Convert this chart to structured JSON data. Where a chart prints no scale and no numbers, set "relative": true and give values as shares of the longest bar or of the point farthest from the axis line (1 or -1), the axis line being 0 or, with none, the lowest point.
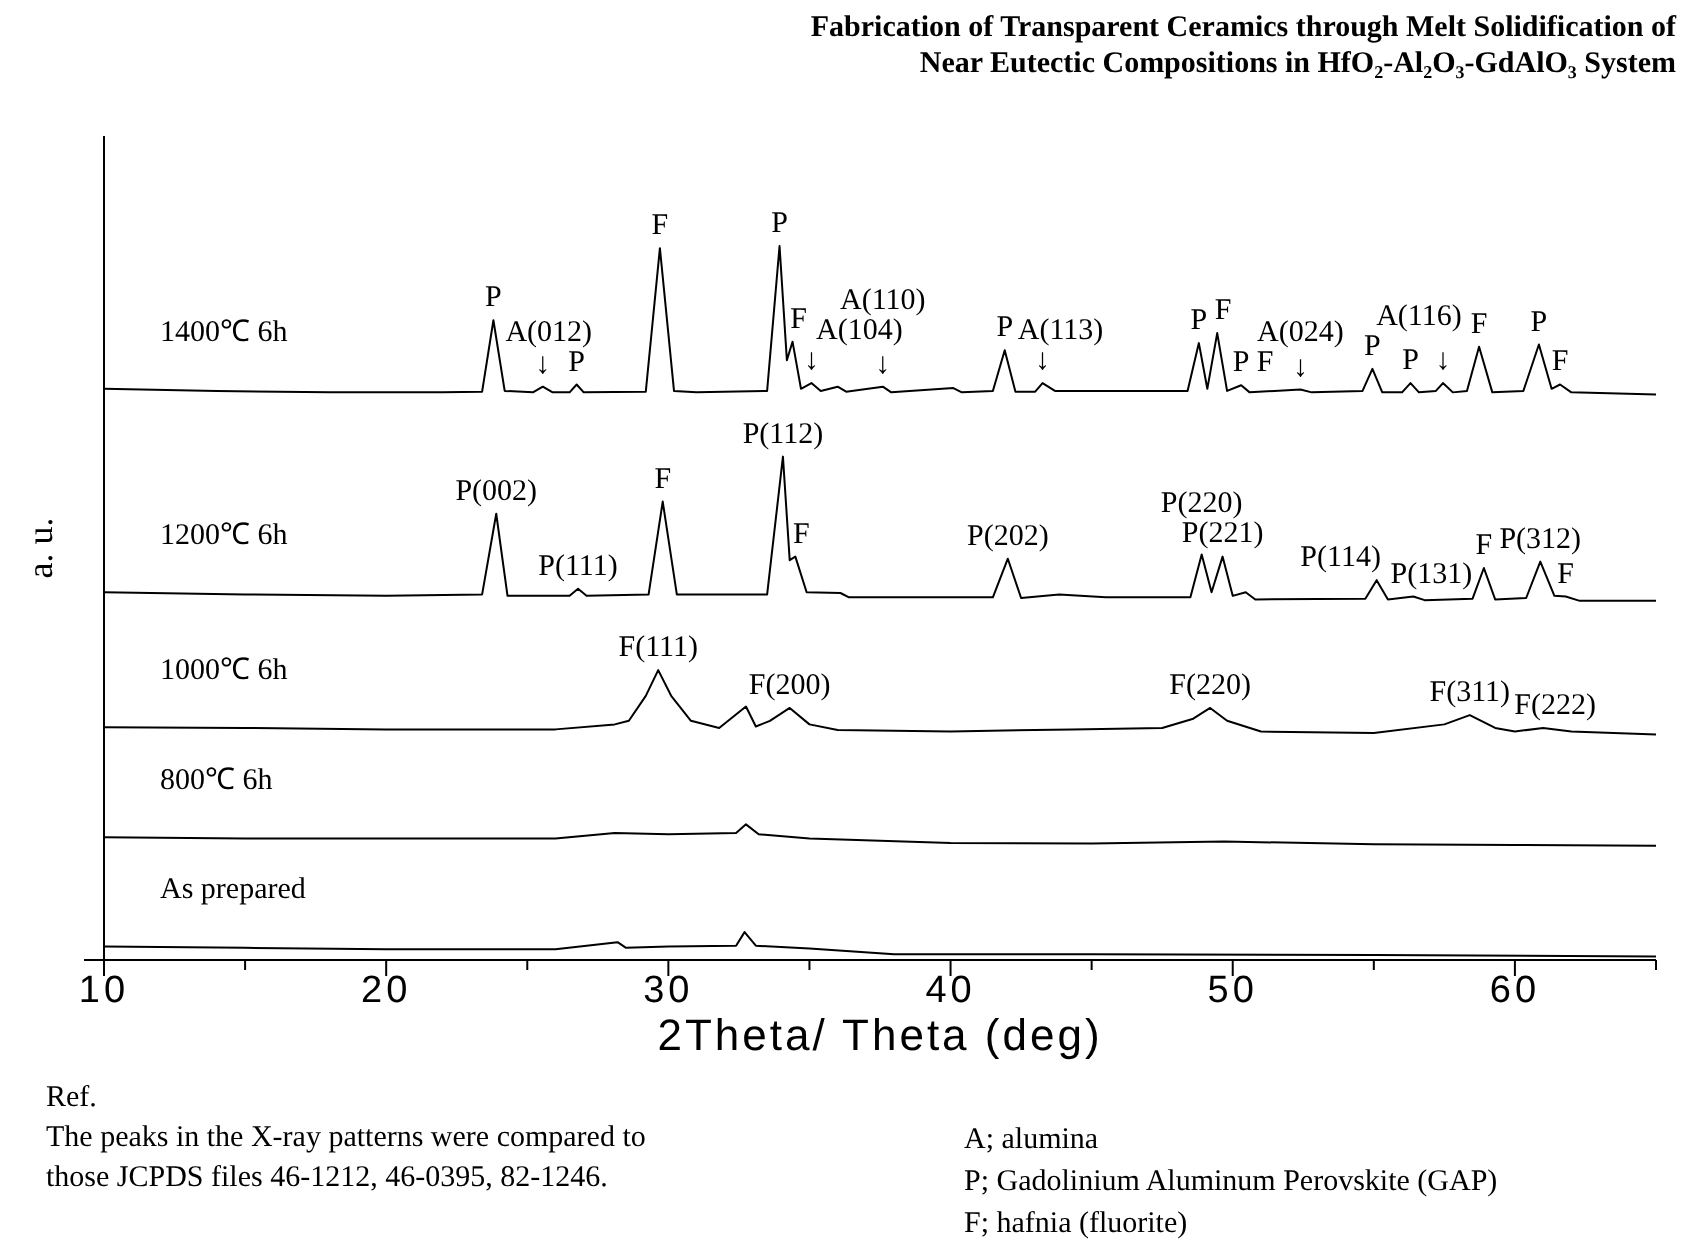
{
  "chart_data": {
    "type": "line",
    "title": "Fabrication of Transparent Ceramics through Melt Solidification of Near Eutectic Compositions in HfO₂-Al₂O₃-GdAlO₃ System",
    "xlabel": "2Theta/ Theta (deg)",
    "ylabel": "a. u.",
    "relative": true,
    "xlim": [
      10,
      65
    ],
    "xticks": [
      10,
      {
        "value": 15,
        "label": null
      },
      20,
      {
        "value": 25,
        "label": null
      },
      30,
      {
        "value": 35,
        "label": null
      },
      40,
      {
        "value": 45,
        "label": null
      },
      50,
      {
        "value": 55,
        "label": null
      },
      60,
      {
        "value": 65,
        "label": null
      }
    ],
    "series": [
      {
        "name": "1400℃ 6h",
        "color": "#000000",
        "x": [
          10,
          14,
          18,
          22,
          23.4,
          23.8,
          24.2,
          25.2,
          25.55,
          25.9,
          26.5,
          26.75,
          27,
          29.2,
          29.7,
          30.2,
          31,
          33.5,
          33.94,
          34.2,
          34.4,
          34.7,
          35.07,
          35.4,
          36.0,
          36.3,
          37.6,
          37.9,
          40.1,
          40.4,
          41.5,
          41.92,
          42.3,
          43.0,
          43.26,
          43.7,
          48.4,
          48.8,
          49.1,
          49.45,
          49.8,
          50.3,
          50.6,
          52.4,
          52.8,
          54.6,
          54.95,
          55.3,
          56.0,
          56.3,
          56.6,
          57.2,
          57.45,
          57.8,
          58.3,
          58.73,
          59.2,
          60.3,
          60.85,
          61.3,
          61.6,
          62.0,
          65
        ],
        "values": [
          0.8,
          0.797,
          0.795,
          0.795,
          0.796,
          0.896,
          0.797,
          0.795,
          0.803,
          0.795,
          0.795,
          0.806,
          0.795,
          0.796,
          0.997,
          0.797,
          0.795,
          0.797,
          1.0,
          0.84,
          0.866,
          0.8,
          0.808,
          0.797,
          0.803,
          0.796,
          0.803,
          0.795,
          0.801,
          0.795,
          0.797,
          0.854,
          0.796,
          0.796,
          0.808,
          0.797,
          0.797,
          0.864,
          0.8,
          0.878,
          0.797,
          0.805,
          0.795,
          0.799,
          0.795,
          0.797,
          0.828,
          0.795,
          0.795,
          0.808,
          0.795,
          0.797,
          0.808,
          0.795,
          0.797,
          0.859,
          0.795,
          0.797,
          0.862,
          0.8,
          0.806,
          0.795,
          0.792
        ]
      },
      {
        "name": "1200℃ 6h",
        "color": "#000000",
        "x": [
          10,
          15,
          20,
          23.4,
          23.9,
          24.3,
          26.5,
          26.8,
          27.1,
          29.3,
          29.8,
          30.3,
          33.5,
          34.06,
          34.3,
          34.5,
          34.9,
          36.1,
          36.4,
          41.5,
          42.03,
          42.5,
          43.85,
          45.5,
          48.5,
          48.9,
          49.25,
          49.64,
          50.0,
          50.46,
          50.8,
          54.7,
          55.1,
          55.5,
          56.4,
          56.8,
          58.5,
          58.9,
          59.3,
          60.4,
          60.9,
          61.4,
          61.8,
          62.3,
          65
        ],
        "values": [
          0.515,
          0.512,
          0.51,
          0.512,
          0.625,
          0.51,
          0.51,
          0.52,
          0.51,
          0.512,
          0.642,
          0.512,
          0.512,
          0.705,
          0.56,
          0.565,
          0.515,
          0.514,
          0.508,
          0.508,
          0.562,
          0.507,
          0.512,
          0.508,
          0.508,
          0.568,
          0.515,
          0.565,
          0.51,
          0.515,
          0.505,
          0.506,
          0.532,
          0.505,
          0.509,
          0.504,
          0.506,
          0.549,
          0.505,
          0.507,
          0.558,
          0.51,
          0.509,
          0.503,
          0.503
        ]
      },
      {
        "name": "1000℃ 6h",
        "color": "#000000",
        "x": [
          10,
          15,
          20,
          26,
          28.1,
          28.6,
          29.2,
          29.64,
          30.1,
          30.8,
          31.8,
          32.75,
          33.1,
          33.6,
          34.3,
          35,
          36,
          40,
          44.3,
          47.5,
          48.6,
          49.2,
          49.8,
          51,
          55,
          57.5,
          58.4,
          59.3,
          60,
          61,
          62,
          65
        ],
        "values": [
          0.326,
          0.325,
          0.323,
          0.323,
          0.33,
          0.335,
          0.37,
          0.406,
          0.37,
          0.335,
          0.325,
          0.355,
          0.327,
          0.335,
          0.353,
          0.33,
          0.322,
          0.32,
          0.323,
          0.325,
          0.338,
          0.353,
          0.335,
          0.32,
          0.318,
          0.33,
          0.343,
          0.325,
          0.32,
          0.325,
          0.32,
          0.316
        ]
      },
      {
        "name": "800℃ 6h",
        "color": "#000000",
        "x": [
          10,
          15,
          20,
          26,
          28.1,
          30,
          32.4,
          32.75,
          33.2,
          35,
          40,
          45,
          49.7,
          55,
          60,
          65
        ],
        "values": [
          0.172,
          0.17,
          0.17,
          0.17,
          0.178,
          0.176,
          0.178,
          0.19,
          0.176,
          0.17,
          0.164,
          0.163,
          0.166,
          0.162,
          0.161,
          0.16
        ]
      },
      {
        "name": "As prepared",
        "color": "#000000",
        "x": [
          10,
          15,
          20,
          26,
          28.2,
          28.5,
          30,
          32.4,
          32.7,
          33.1,
          35,
          38,
          45,
          55,
          65
        ],
        "values": [
          0.019,
          0.017,
          0.015,
          0.015,
          0.025,
          0.017,
          0.019,
          0.02,
          0.039,
          0.02,
          0.016,
          0.008,
          0.008,
          0.007,
          0.005
        ]
      }
    ],
    "annotations": [
      {
        "text": "↓",
        "x": 25.55,
        "y": 0.803
      },
      {
        "text": "↓",
        "x": 35.07,
        "y": 0.808
      },
      {
        "text": "↓",
        "x": 37.6,
        "y": 0.803
      },
      {
        "text": "↓",
        "x": 43.26,
        "y": 0.808
      },
      {
        "text": "↓",
        "x": 52.4,
        "y": 0.799
      },
      {
        "text": "↓",
        "x": 57.45,
        "y": 0.808
      },
      {
        "text": "P",
        "x": 23.8,
        "y": 0.896
      },
      {
        "text": "P",
        "x": 26.75,
        "y": 0.806
      },
      {
        "text": "F",
        "x": 34.4,
        "y": 0.866
      },
      {
        "text": "P",
        "x": 41.92,
        "y": 0.854
      },
      {
        "text": "P",
        "x": 48.8,
        "y": 0.864
      },
      {
        "text": "P",
        "x": 50.3,
        "y": 0.805
      },
      {
        "text": "F",
        "x": 49.45,
        "y": 0.878
      },
      {
        "text": "F",
        "x": 50.3,
        "y": 0.805
      },
      {
        "text": "P",
        "x": 54.95,
        "y": 0.828
      },
      {
        "text": "P",
        "x": 56.3,
        "y": 0.808
      },
      {
        "text": "P",
        "x": 60.85,
        "y": 0.862
      },
      {
        "text": "F",
        "x": 58.73,
        "y": 0.859
      },
      {
        "text": "F",
        "x": 61.6,
        "y": 0.806
      },
      {
        "text": "F",
        "x": 29.7,
        "y": 0.997
      },
      {
        "text": "P",
        "x": 33.94,
        "y": 1.0
      },
      {
        "text": "A(012)",
        "x": 25.55,
        "y": 0.803
      },
      {
        "text": "A(104)",
        "x": 35.07,
        "y": 0.808
      },
      {
        "text": "A(110)",
        "x": 37.6,
        "y": 0.803
      },
      {
        "text": "A(113)",
        "x": 43.26,
        "y": 0.808
      },
      {
        "text": "A(024)",
        "x": 52.4,
        "y": 0.799
      },
      {
        "text": "A(116)",
        "x": 57.45,
        "y": 0.808
      },
      {
        "text": "P(002)",
        "x": 23.9,
        "y": 0.625
      },
      {
        "text": "P(111)",
        "x": 26.8,
        "y": 0.52
      },
      {
        "text": "F",
        "x": 29.8,
        "y": 0.642
      },
      {
        "text": "F",
        "x": 34.5,
        "y": 0.565
      },
      {
        "text": "P(112)",
        "x": 34.06,
        "y": 0.705
      },
      {
        "text": "P(202)",
        "x": 42.03,
        "y": 0.562
      },
      {
        "text": "P(221)",
        "x": 49.64,
        "y": 0.565
      },
      {
        "text": "P(220)",
        "x": 48.9,
        "y": 0.568
      },
      {
        "text": "P(131)",
        "x": 56.4,
        "y": 0.509
      },
      {
        "text": "F",
        "x": 58.9,
        "y": 0.549
      },
      {
        "text": "F",
        "x": 61.8,
        "y": 0.509
      },
      {
        "text": "P(114)",
        "x": 55.1,
        "y": 0.532
      },
      {
        "text": "P(312)",
        "x": 60.9,
        "y": 0.558
      },
      {
        "text": "F(111)",
        "x": 29.64,
        "y": 0.406
      },
      {
        "text": "F(200)",
        "x": 34.3,
        "y": 0.353
      },
      {
        "text": "F(220)",
        "x": 49.2,
        "y": 0.353
      },
      {
        "text": "F(311)",
        "x": 58.4,
        "y": 0.343
      },
      {
        "text": "F(222)",
        "x": 61.0,
        "y": 0.325
      },
      "Ref.",
      "The peaks in the X-ray patterns were compared to those JCPDS files 46-1212, 46-0395, 82-1246.",
      "A; alumina",
      "P; Gadolinium Aluminum Perovskite (GAP)",
      "F; hafnia (fluorite)"
    ]
  }
}
